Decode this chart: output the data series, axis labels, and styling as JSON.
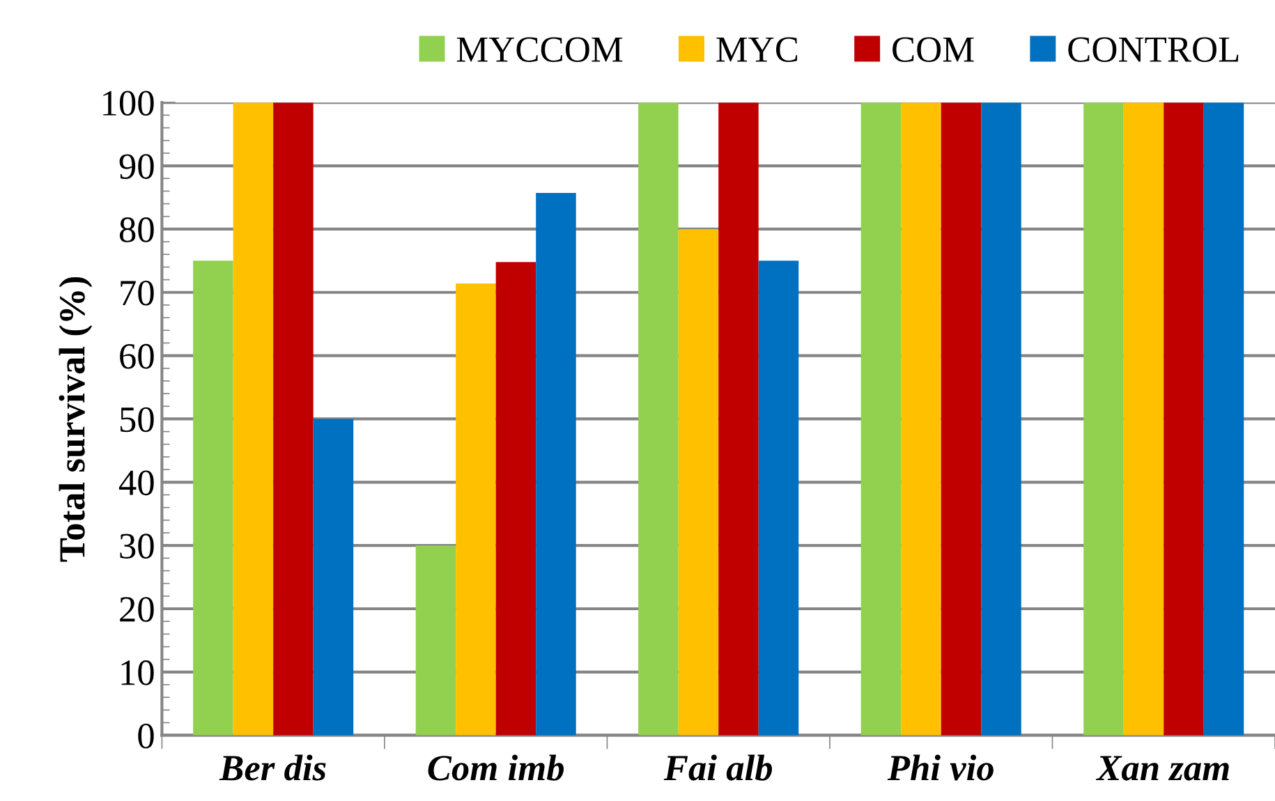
{
  "chart_data": {
    "type": "bar",
    "ylabel": "Total survival (%)",
    "categories": [
      "Ber dis",
      "Com imb",
      "Fai alb",
      "Phi vio",
      "Xan zam"
    ],
    "series": [
      {
        "name": "MYCCOM",
        "color": "#92d050",
        "values": [
          75,
          30,
          100,
          100,
          100
        ]
      },
      {
        "name": "MYC",
        "color": "#ffc000",
        "values": [
          100,
          71.4,
          80,
          100,
          100
        ]
      },
      {
        "name": "COM",
        "color": "#c00000",
        "values": [
          100,
          74.8,
          100,
          100,
          100
        ]
      },
      {
        "name": "CONTROL",
        "color": "#0070c0",
        "values": [
          50,
          85.7,
          75,
          100,
          100
        ]
      }
    ],
    "ylim": [
      0,
      100
    ],
    "yticks": [
      0,
      10,
      20,
      30,
      40,
      50,
      60,
      70,
      80,
      90,
      100
    ],
    "grid": "y",
    "legend": "top"
  }
}
